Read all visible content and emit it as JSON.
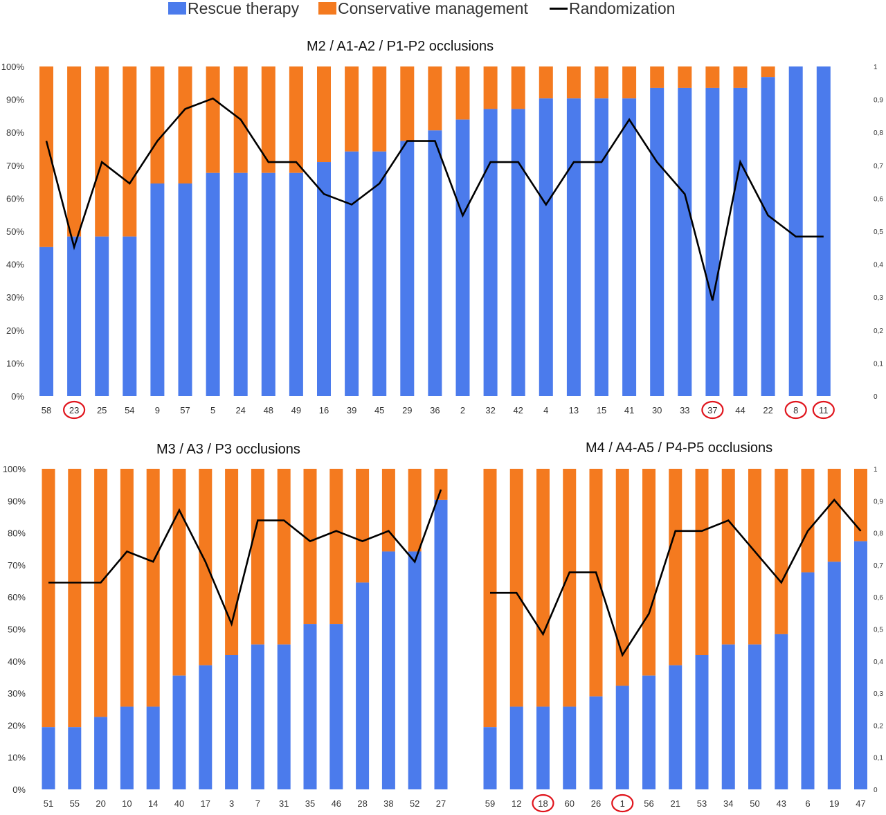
{
  "legend": {
    "rescue_label": "Rescue therapy",
    "conservative_label": "Conservative management",
    "randomization_label": "Randomization"
  },
  "colors": {
    "rescue": "#4b7bec",
    "conservative": "#f47a1f",
    "line": "#000000",
    "circle": "#e0141c"
  },
  "chart_data": [
    {
      "type": "bar",
      "stacked": true,
      "title": "M2 / A1-A2 / P1-P2 occlusions",
      "categories": [
        "58",
        "23",
        "25",
        "54",
        "9",
        "57",
        "5",
        "24",
        "48",
        "49",
        "16",
        "39",
        "45",
        "29",
        "36",
        "2",
        "32",
        "42",
        "4",
        "13",
        "15",
        "41",
        "30",
        "33",
        "37",
        "44",
        "22",
        "8",
        "11"
      ],
      "circled": [
        "23",
        "37",
        "8",
        "11"
      ],
      "series": [
        {
          "name": "Rescue therapy",
          "values": [
            45.2,
            48.4,
            48.4,
            48.4,
            64.5,
            64.5,
            67.7,
            67.7,
            67.7,
            67.7,
            71.0,
            74.2,
            74.2,
            77.4,
            80.6,
            83.9,
            87.1,
            87.1,
            90.3,
            90.3,
            90.3,
            90.3,
            93.5,
            93.5,
            93.5,
            93.5,
            96.8,
            100,
            100
          ]
        },
        {
          "name": "Randomization",
          "values": [
            0.774,
            0.452,
            0.71,
            0.645,
            0.774,
            0.871,
            0.903,
            0.839,
            0.71,
            0.71,
            0.613,
            0.581,
            0.645,
            0.774,
            0.774,
            0.548,
            0.71,
            0.71,
            0.581,
            0.71,
            0.71,
            0.839,
            0.71,
            0.613,
            0.29,
            0.71,
            0.548,
            0.484,
            0.484
          ]
        }
      ],
      "y_left_ticks": [
        "0%",
        "10%",
        "20%",
        "30%",
        "40%",
        "50%",
        "60%",
        "70%",
        "80%",
        "90%",
        "100%"
      ],
      "y_right_ticks": [
        "0",
        "0,1",
        "0,2",
        "0,3",
        "0,4",
        "0,5",
        "0,6",
        "0,7",
        "0,8",
        "0,9",
        "1"
      ],
      "ylim": [
        0,
        100
      ],
      "y2lim": [
        0,
        1
      ]
    },
    {
      "type": "bar",
      "stacked": true,
      "title": "M3 / A3 / P3 occlusions",
      "categories": [
        "51",
        "55",
        "20",
        "10",
        "14",
        "40",
        "17",
        "3",
        "7",
        "31",
        "35",
        "46",
        "28",
        "38",
        "52",
        "27"
      ],
      "circled": [],
      "series": [
        {
          "name": "Rescue therapy",
          "values": [
            19.4,
            19.4,
            22.6,
            25.8,
            25.8,
            35.5,
            38.7,
            41.9,
            45.2,
            45.2,
            51.6,
            51.6,
            64.5,
            74.2,
            74.2,
            90.3
          ]
        },
        {
          "name": "Randomization",
          "values": [
            0.645,
            0.645,
            0.645,
            0.742,
            0.71,
            0.871,
            0.71,
            0.516,
            0.839,
            0.839,
            0.774,
            0.806,
            0.774,
            0.806,
            0.71,
            0.935
          ]
        }
      ],
      "y_left_ticks": [
        "0%",
        "10%",
        "20%",
        "30%",
        "40%",
        "50%",
        "60%",
        "70%",
        "80%",
        "90%",
        "100%"
      ],
      "y_right_ticks": [],
      "ylim": [
        0,
        100
      ],
      "y2lim": [
        0,
        1
      ]
    },
    {
      "type": "bar",
      "stacked": true,
      "title": "M4 / A4-A5 / P4-P5 occlusions",
      "categories": [
        "59",
        "12",
        "18",
        "60",
        "26",
        "1",
        "56",
        "21",
        "53",
        "34",
        "50",
        "43",
        "6",
        "19",
        "47"
      ],
      "circled": [
        "18",
        "1"
      ],
      "series": [
        {
          "name": "Rescue therapy",
          "values": [
            19.4,
            25.8,
            25.8,
            25.8,
            29.0,
            32.3,
            35.5,
            38.7,
            41.9,
            45.2,
            45.2,
            48.4,
            67.7,
            71.0,
            77.4
          ]
        },
        {
          "name": "Randomization",
          "values": [
            0.613,
            0.613,
            0.484,
            0.677,
            0.677,
            0.419,
            0.548,
            0.806,
            0.806,
            0.839,
            0.742,
            0.645,
            0.806,
            0.903,
            0.806
          ]
        }
      ],
      "y_left_ticks": [],
      "y_right_ticks": [
        "0",
        "0,1",
        "0,2",
        "0,3",
        "0,4",
        "0,5",
        "0,6",
        "0,7",
        "0,8",
        "0,9",
        "1"
      ],
      "ylim": [
        0,
        100
      ],
      "y2lim": [
        0,
        1
      ]
    }
  ]
}
